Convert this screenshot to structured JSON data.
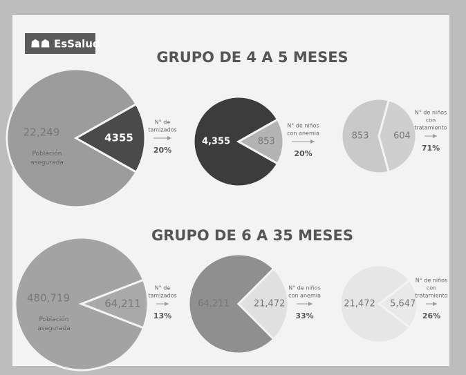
{
  "logo": "EsSalud",
  "chart_data": [
    {
      "type": "pie",
      "title": "GRUPO DE 4 A 5 MESES",
      "categories": [
        "Población asegurada",
        null
      ],
      "values": [
        22249,
        4355
      ],
      "value_labels": [
        "22,249",
        "4355"
      ],
      "colors": [
        "#9c9c9c",
        "#4a4a4a"
      ],
      "annotation": [
        "N° de",
        "tamizados"
      ],
      "rate": "20%"
    },
    {
      "type": "pie",
      "categories": [
        null,
        null
      ],
      "values": [
        4355,
        853
      ],
      "value_labels": [
        "4,355",
        "853"
      ],
      "colors": [
        "#3c3c3c",
        "#b3b3b3"
      ],
      "annotation": [
        "N° de niños",
        "con anemia"
      ],
      "rate": "20%"
    },
    {
      "type": "pie",
      "categories": [
        null,
        null
      ],
      "values": [
        853,
        604
      ],
      "value_labels": [
        "853",
        "604"
      ],
      "colors": [
        "#c9c9c9",
        "#cfcfcf"
      ],
      "annotation": [
        "N° de niños",
        "con",
        "tratamiento"
      ],
      "rate": "71%"
    },
    {
      "type": "pie",
      "title": "GRUPO DE 6 A 35 MESES",
      "categories": [
        "Población asegurada",
        null
      ],
      "values": [
        480719,
        64211
      ],
      "value_labels": [
        "480,719",
        "64,211"
      ],
      "colors": [
        "#a3a3a3",
        "#a9a9a9"
      ],
      "annotation": [
        "N° de",
        "tamizados"
      ],
      "rate": "13%"
    },
    {
      "type": "pie",
      "categories": [
        null,
        null
      ],
      "values": [
        64211,
        21472
      ],
      "value_labels": [
        "64,211",
        "21,472"
      ],
      "colors": [
        "#8f8f8f",
        "#e0e0e0"
      ],
      "annotation": [
        "N° de niños",
        "con anemia"
      ],
      "rate": "33%"
    },
    {
      "type": "pie",
      "categories": [
        null,
        null
      ],
      "values": [
        21472,
        5647
      ],
      "value_labels": [
        "21,472",
        "5,647"
      ],
      "colors": [
        "#e6e6e6",
        "#e9e9e9"
      ],
      "annotation": [
        "N° de niños",
        "con",
        "tratamiento"
      ],
      "rate": "26%"
    }
  ]
}
